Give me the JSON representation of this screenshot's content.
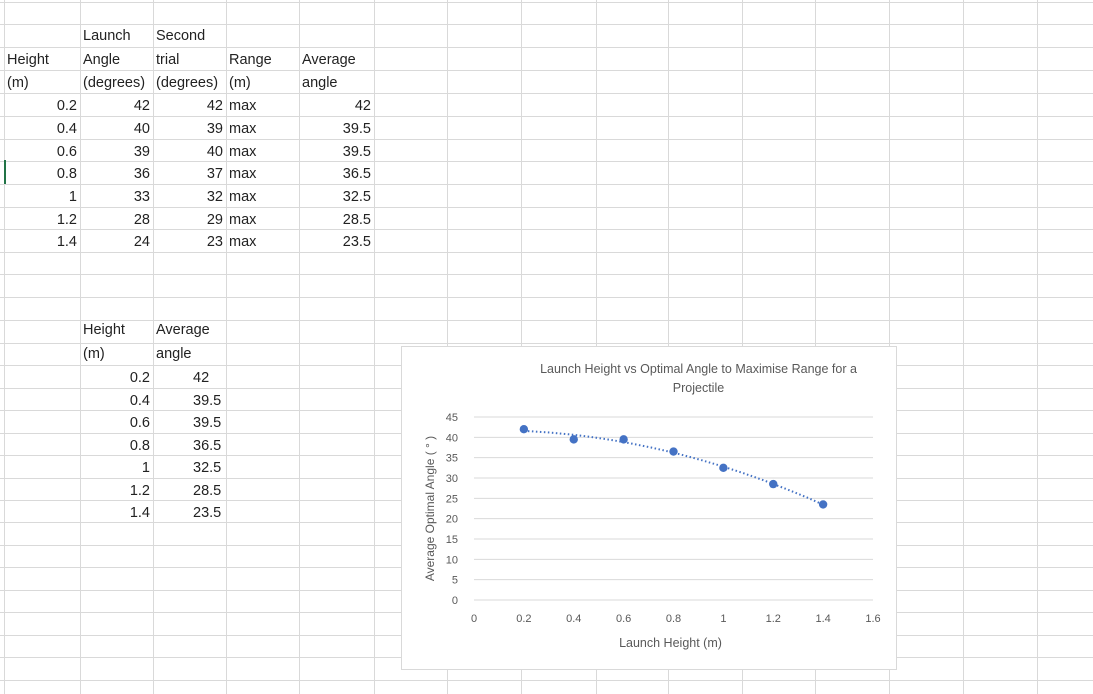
{
  "table1": {
    "headers": [
      [
        "",
        "Height",
        "(m)"
      ],
      [
        "Launch",
        "Angle",
        "(degrees)"
      ],
      [
        "Second",
        "trial",
        "(degrees)"
      ],
      [
        "",
        "Range",
        "(m)"
      ],
      [
        "",
        "Average",
        "angle"
      ]
    ],
    "rows": [
      [
        "0.2",
        "42",
        "42",
        "max",
        "42"
      ],
      [
        "0.4",
        "40",
        "39",
        "max",
        "39.5"
      ],
      [
        "0.6",
        "39",
        "40",
        "max",
        "39.5"
      ],
      [
        "0.8",
        "36",
        "37",
        "max",
        "36.5"
      ],
      [
        "1",
        "33",
        "32",
        "max",
        "32.5"
      ],
      [
        "1.2",
        "28",
        "29",
        "max",
        "28.5"
      ],
      [
        "1.4",
        "24",
        "23",
        "max",
        "23.5"
      ]
    ]
  },
  "table2": {
    "headers": [
      [
        "Height",
        "(m)"
      ],
      [
        "Average",
        "angle"
      ]
    ],
    "rows": [
      [
        "0.2",
        "42"
      ],
      [
        "0.4",
        "39.5"
      ],
      [
        "0.6",
        "39.5"
      ],
      [
        "0.8",
        "36.5"
      ],
      [
        "1",
        "32.5"
      ],
      [
        "1.2",
        "28.5"
      ],
      [
        "1.4",
        "23.5"
      ]
    ]
  },
  "colors": {
    "grid": "#d9d9d9",
    "text": "#222222",
    "accent": "#217346",
    "series": "#4472c4",
    "chart_text": "#595959"
  },
  "chart_data": {
    "type": "scatter",
    "title_lines": [
      "Launch Height vs Optimal Angle to Maximise Range for a",
      "Projectile"
    ],
    "xlabel": "Launch Height (m)",
    "ylabel": "Average Optimal Angle ( ° )",
    "x": [
      0.2,
      0.4,
      0.6,
      0.8,
      1,
      1.2,
      1.4
    ],
    "y": [
      42,
      39.5,
      39.5,
      36.5,
      32.5,
      28.5,
      23.5
    ],
    "xlim": [
      0,
      1.6
    ],
    "ylim": [
      0,
      45
    ],
    "x_ticks": [
      "0",
      "0.2",
      "0.4",
      "0.6",
      "0.8",
      "1",
      "1.2",
      "1.4",
      "1.6"
    ],
    "y_ticks": [
      "0",
      "5",
      "10",
      "15",
      "20",
      "25",
      "30",
      "35",
      "40",
      "45"
    ],
    "grid": true,
    "trendline": "polynomial-dotted"
  }
}
